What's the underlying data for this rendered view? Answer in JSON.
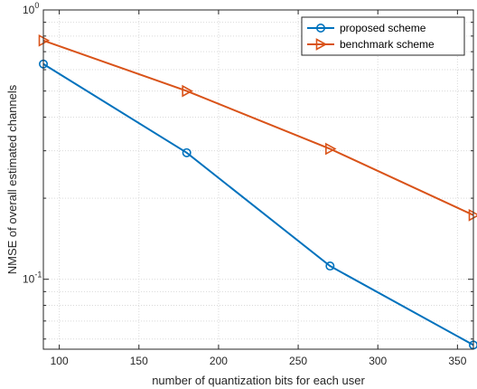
{
  "chart_data": {
    "type": "line",
    "xlabel": "number of quantization bits for each user",
    "ylabel": "NMSE of overall estimated channels",
    "xlim": [
      90,
      360
    ],
    "ylim": [
      0.055,
      1
    ],
    "yscale": "log",
    "grid": true,
    "legend_position": "top-right",
    "x_ticks": [
      100,
      150,
      200,
      250,
      300,
      350
    ],
    "x_tick_labels": [
      "100",
      "150",
      "200",
      "250",
      "300",
      "350"
    ],
    "y_major_ticks": [
      0.1,
      1
    ],
    "y_tick_labels": [
      {
        "base": "10",
        "exp": "-1"
      },
      {
        "base": "10",
        "exp": "0"
      }
    ],
    "y_minor_ticks": [
      0.06,
      0.07,
      0.08,
      0.09,
      0.2,
      0.3,
      0.4,
      0.5,
      0.6,
      0.7,
      0.8,
      0.9
    ],
    "series": [
      {
        "name": "proposed scheme",
        "color": "#0072BD",
        "marker": "circle",
        "x": [
          90,
          180,
          270,
          360
        ],
        "y": [
          0.63,
          0.295,
          0.112,
          0.057
        ]
      },
      {
        "name": "benchmark scheme",
        "color": "#D95319",
        "marker": "triangle-right",
        "x": [
          90,
          180,
          270,
          360
        ],
        "y": [
          0.77,
          0.5,
          0.305,
          0.173
        ]
      }
    ]
  }
}
